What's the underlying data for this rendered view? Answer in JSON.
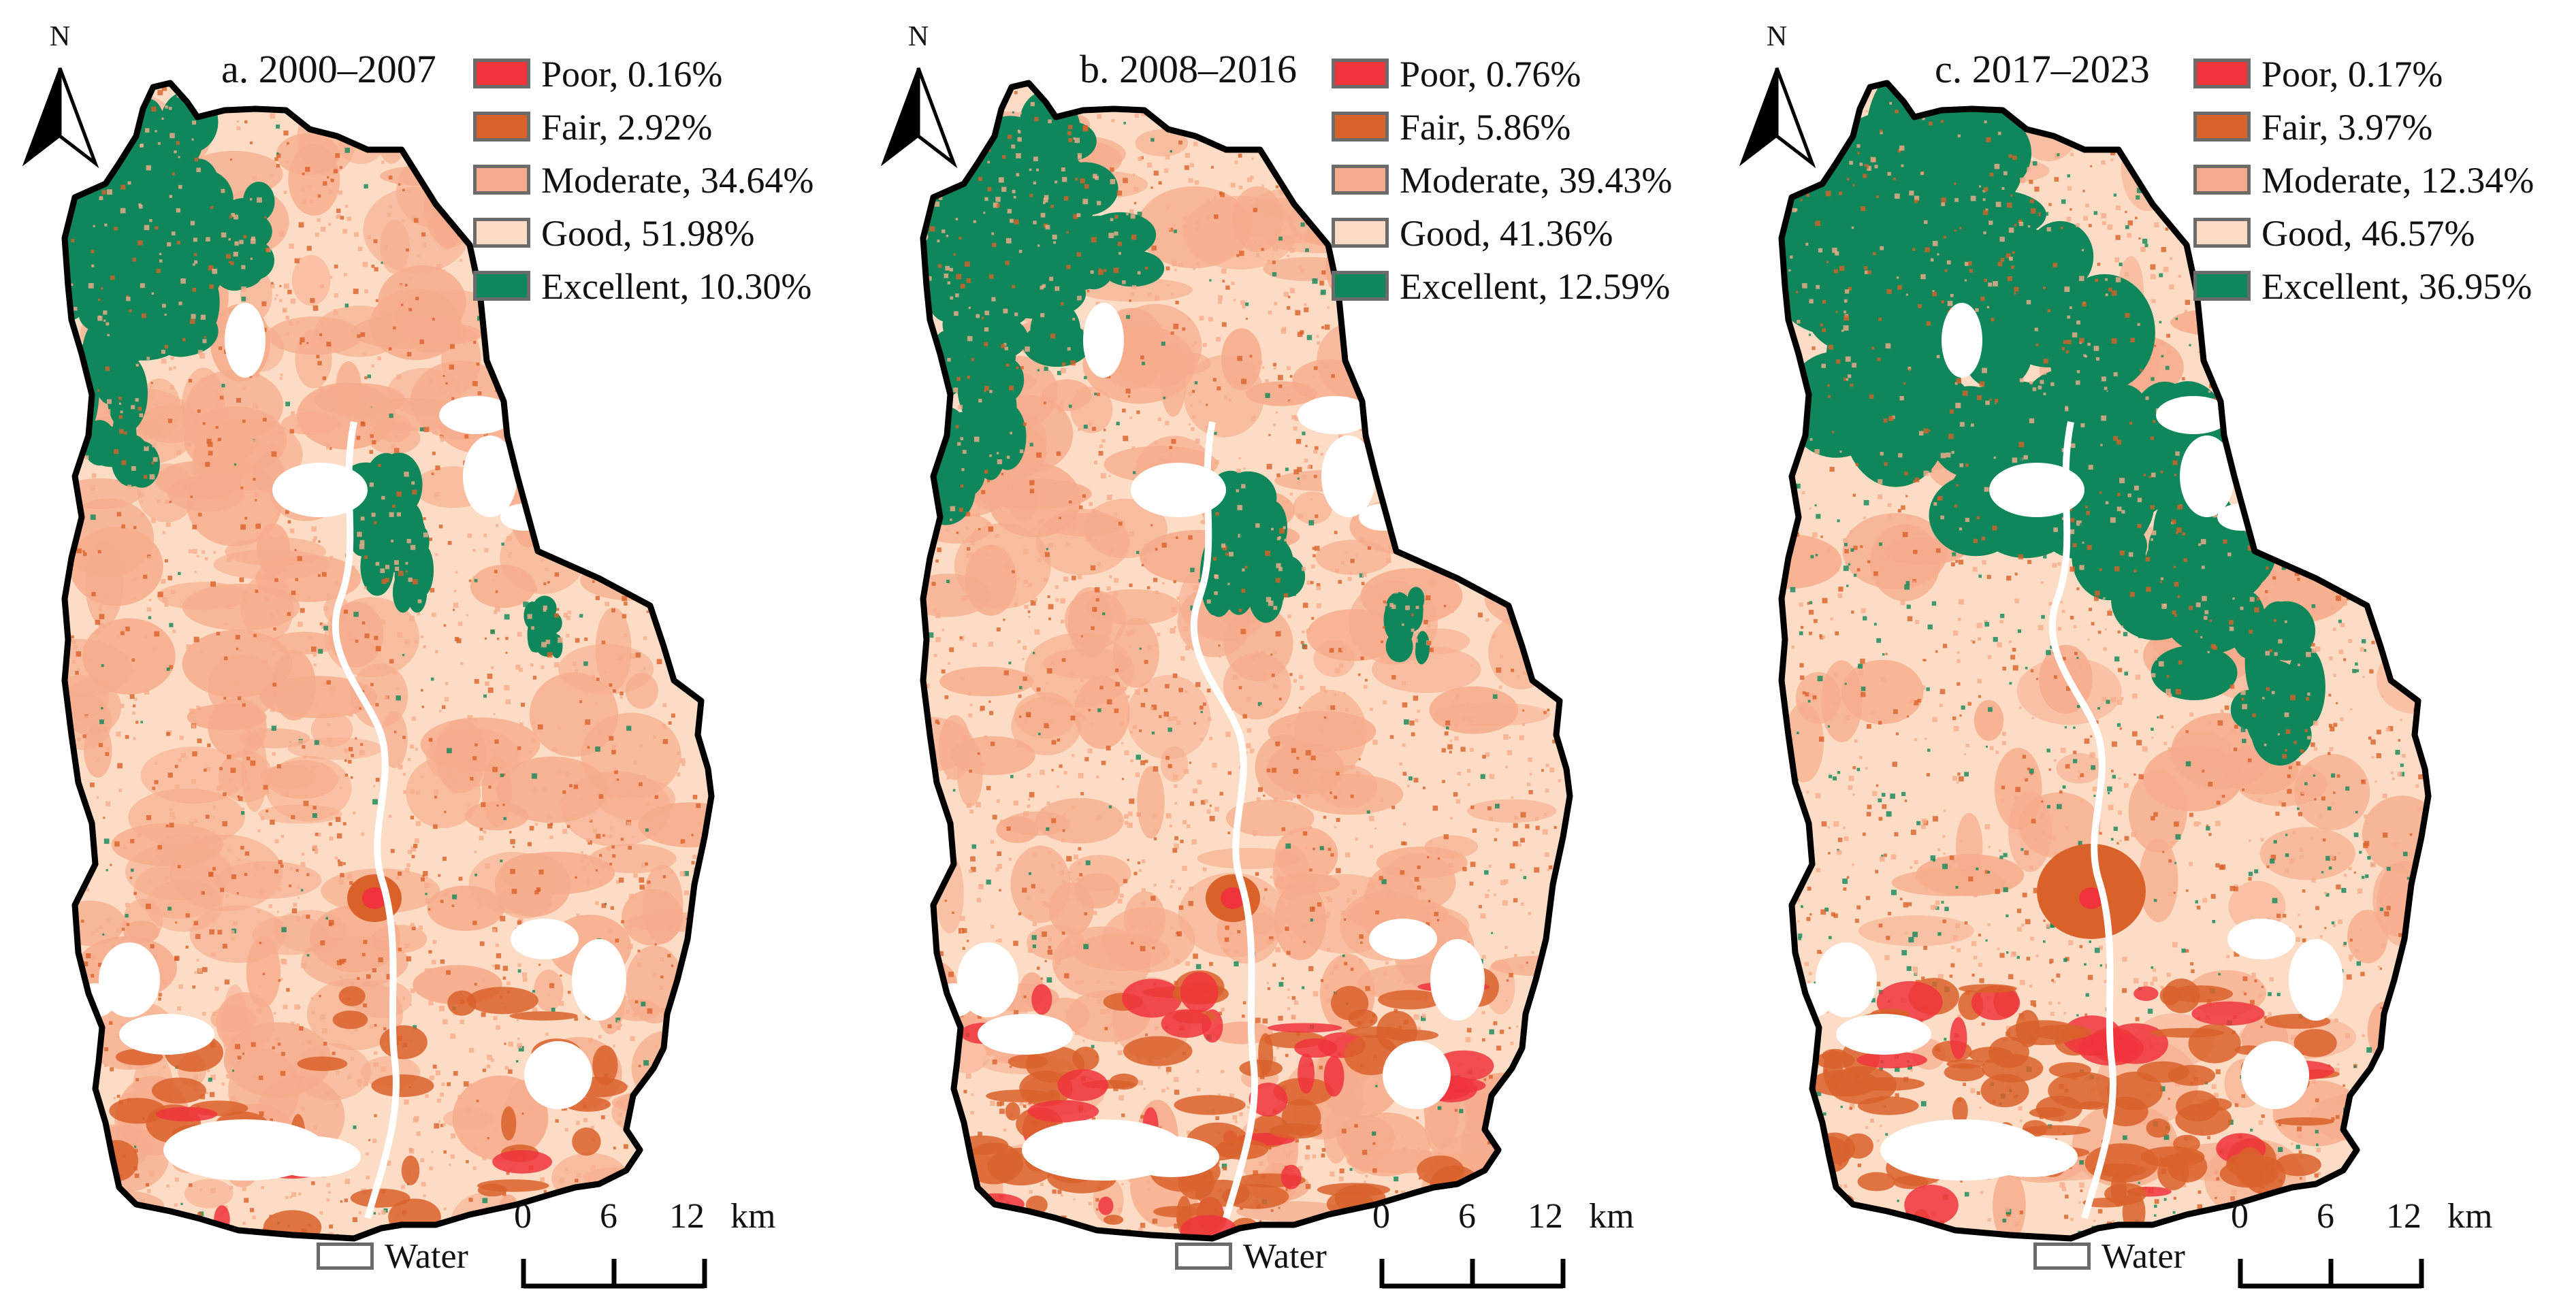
{
  "north_letter": "N",
  "colors": {
    "poor": "#f0343c",
    "fair": "#d9622b",
    "moderate": "#f6ac8c",
    "good": "#fcdcc4",
    "excellent": "#10875a",
    "water": "#ffffff",
    "boundary": "#000000"
  },
  "scale_bar": {
    "ticks": [
      "0",
      "6",
      "12"
    ],
    "unit": "km"
  },
  "water_label": "Water",
  "panels": [
    {
      "title": "a. 2000–2007",
      "legend": [
        {
          "class": "poor",
          "label": "Poor, 0.16%",
          "percent": 0.16
        },
        {
          "class": "fair",
          "label": "Fair, 2.92%",
          "percent": 2.92
        },
        {
          "class": "moderate",
          "label": "Moderate, 34.64%",
          "percent": 34.64
        },
        {
          "class": "good",
          "label": "Good, 51.98%",
          "percent": 51.98
        },
        {
          "class": "excellent",
          "label": "Excellent, 10.30%",
          "percent": 10.3
        }
      ]
    },
    {
      "title": "b. 2008–2016",
      "legend": [
        {
          "class": "poor",
          "label": "Poor, 0.76%",
          "percent": 0.76
        },
        {
          "class": "fair",
          "label": "Fair, 5.86%",
          "percent": 5.86
        },
        {
          "class": "moderate",
          "label": "Moderate, 39.43%",
          "percent": 39.43
        },
        {
          "class": "good",
          "label": "Good, 41.36%",
          "percent": 41.36
        },
        {
          "class": "excellent",
          "label": "Excellent, 12.59%",
          "percent": 12.59
        }
      ]
    },
    {
      "title": "c. 2017–2023",
      "legend": [
        {
          "class": "poor",
          "label": "Poor, 0.17%",
          "percent": 0.17
        },
        {
          "class": "fair",
          "label": "Fair, 3.97%",
          "percent": 3.97
        },
        {
          "class": "moderate",
          "label": "Moderate, 12.34%",
          "percent": 12.34
        },
        {
          "class": "good",
          "label": "Good, 46.57%",
          "percent": 46.57
        },
        {
          "class": "excellent",
          "label": "Excellent, 36.95%",
          "percent": 36.95
        }
      ]
    }
  ]
}
